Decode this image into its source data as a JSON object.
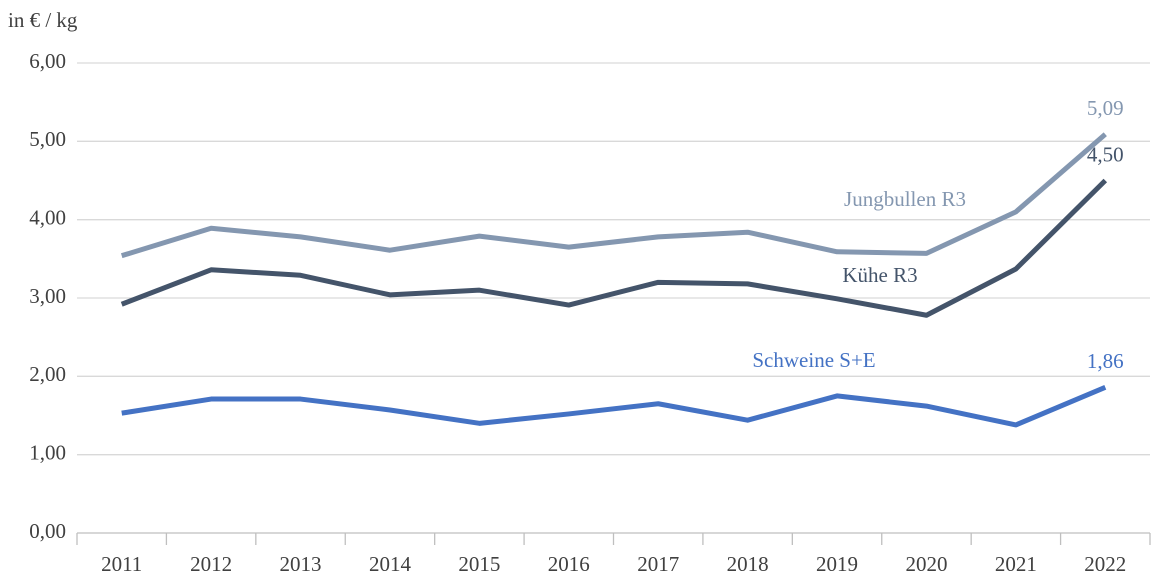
{
  "chart_data": {
    "type": "line",
    "y_axis_label": "in € / kg",
    "categories": [
      "2011",
      "2012",
      "2013",
      "2014",
      "2015",
      "2016",
      "2017",
      "2018",
      "2019",
      "2020",
      "2021",
      "2022"
    ],
    "series": [
      {
        "name": "Jungbullen R3",
        "color": "#8497b0",
        "values": [
          3.54,
          3.89,
          3.78,
          3.61,
          3.79,
          3.65,
          3.78,
          3.84,
          3.59,
          3.57,
          4.1,
          5.09
        ],
        "value_labels": [
          null,
          null,
          null,
          null,
          null,
          null,
          null,
          null,
          null,
          null,
          null,
          "5,09"
        ]
      },
      {
        "name": "Kühe R3",
        "color": "#44546a",
        "values": [
          2.92,
          3.36,
          3.29,
          3.04,
          3.1,
          2.91,
          3.2,
          3.18,
          2.99,
          2.78,
          3.37,
          4.5
        ],
        "value_labels": [
          null,
          null,
          null,
          null,
          null,
          null,
          null,
          null,
          null,
          null,
          null,
          "4,50"
        ]
      },
      {
        "name": "Schweine S+E",
        "color": "#4472c4",
        "values": [
          1.53,
          1.71,
          1.71,
          1.57,
          1.4,
          1.52,
          1.65,
          1.44,
          1.75,
          1.62,
          1.38,
          1.86
        ],
        "value_labels": [
          null,
          null,
          null,
          null,
          null,
          null,
          null,
          null,
          null,
          null,
          null,
          "1,86"
        ]
      }
    ],
    "ylim": [
      0,
      6
    ],
    "yticks": [
      {
        "value": 0,
        "label": "0,00"
      },
      {
        "value": 1,
        "label": "1,00"
      },
      {
        "value": 2,
        "label": "2,00"
      },
      {
        "value": 3,
        "label": "3,00"
      },
      {
        "value": 4,
        "label": "4,00"
      },
      {
        "value": 5,
        "label": "5,00"
      },
      {
        "value": 6,
        "label": "6,00"
      }
    ],
    "grid": true
  }
}
